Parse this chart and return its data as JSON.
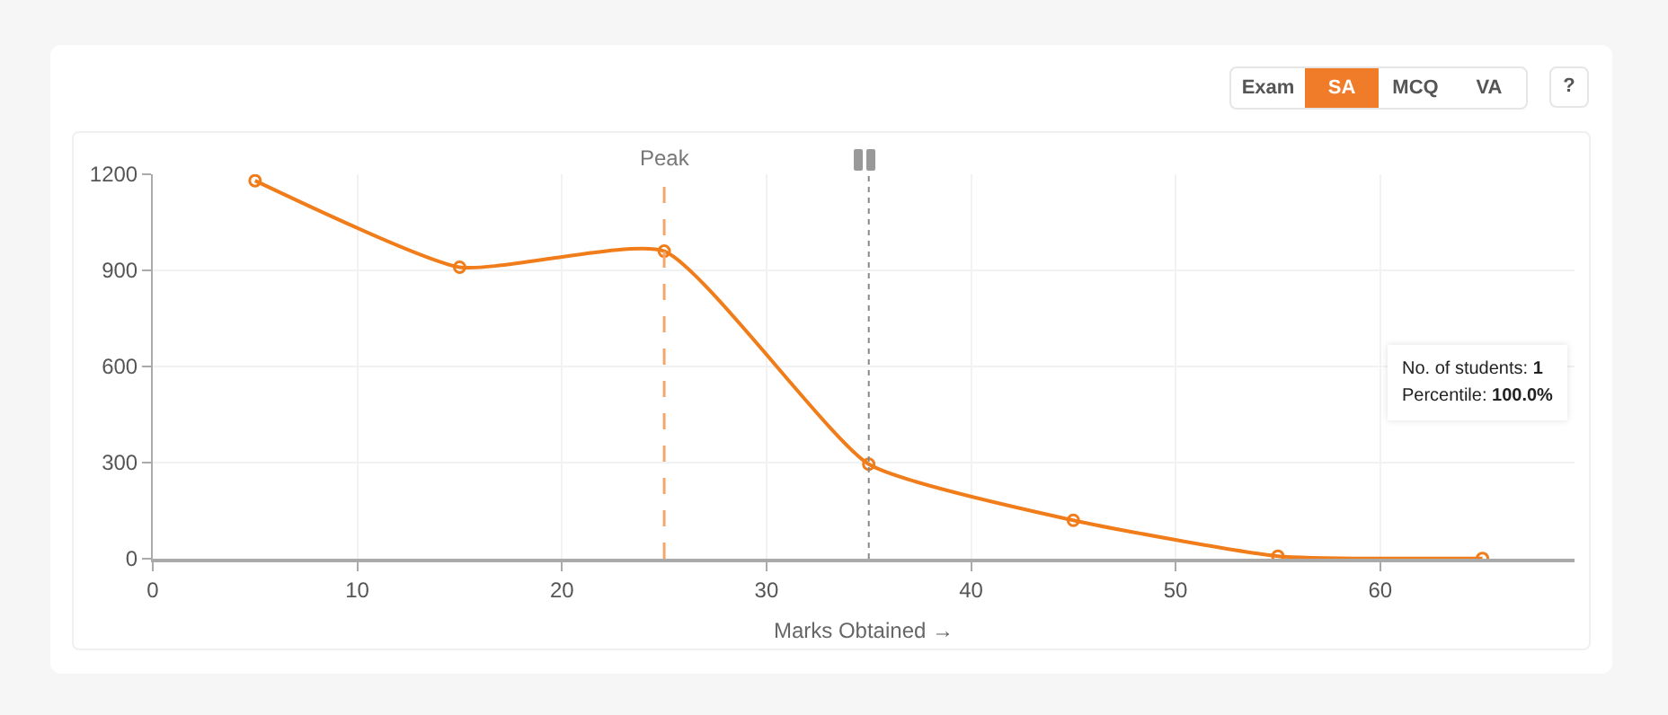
{
  "chart_data": {
    "type": "line",
    "xlabel": "Marks Obtained →",
    "x": [
      5,
      15,
      25,
      35,
      45,
      55,
      65
    ],
    "series": [
      {
        "color": "#f07c1a",
        "values": [
          1180,
          910,
          960,
          295,
          120,
          8,
          1
        ]
      }
    ],
    "xlim": [
      0,
      69.5
    ],
    "xticks": [
      0,
      10,
      20,
      30,
      40,
      50,
      60
    ],
    "ylim": [
      0,
      1200
    ],
    "yticks": [
      0,
      300,
      600,
      900,
      1200
    ],
    "grid": true,
    "marker": "circle",
    "line_style": "solid",
    "ref_lines": [
      {
        "axis": "x",
        "value": 25,
        "label": "Peak",
        "color": "#f5a66a",
        "line_style": "dashed"
      },
      {
        "axis": "x",
        "value": 35,
        "label": null,
        "color": "#888888",
        "line_style": "dotted"
      }
    ],
    "annotations": [
      "Exam",
      "SA",
      "MCQ",
      "VA",
      "?",
      "No. of students: 1",
      "Percentile: 100.0%"
    ]
  }
}
